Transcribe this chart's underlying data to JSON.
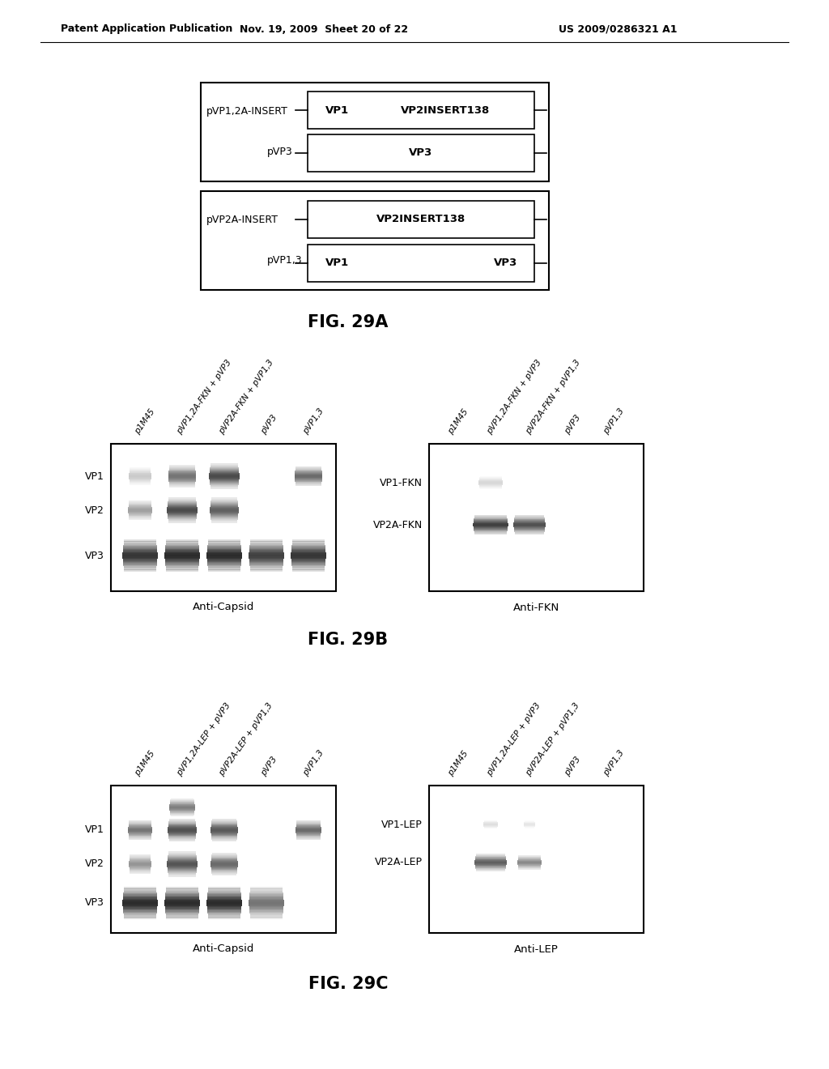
{
  "bg_color": "#ffffff",
  "header_left": "Patent Application Publication",
  "header_mid": "Nov. 19, 2009  Sheet 20 of 22",
  "header_right": "US 2009/0286321 A1",
  "fig29a_title": "FIG. 29A",
  "fig29b_title": "FIG. 29B",
  "fig29c_title": "FIG. 29C",
  "diagram_top_box1_label": "pVP1,2A-INSERT",
  "diagram_top_box1_inner_left": "VP1",
  "diagram_top_box1_inner_right": "VP2INSERT138",
  "diagram_top_box2_label": "pVP3",
  "diagram_top_box2_inner": "VP3",
  "diagram_bot_box1_label": "pVP2A-INSERT",
  "diagram_bot_box1_inner": "VP2INSERT138",
  "diagram_bot_box2_label": "pVP1,3",
  "diagram_bot_box2_inner_left": "VP1",
  "diagram_bot_box2_inner_right": "VP3",
  "lane_labels_fkn": [
    "p1M45",
    "pVP1,2A-FKN + pVP3",
    "pVP2A-FKN + pVP1,3",
    "pVP3",
    "pVP1,3"
  ],
  "lane_labels_lep": [
    "p1M45",
    "pVP1,2A-LEP + pVP3",
    "pVP2A-LEP + pVP1,3",
    "pVP3",
    "pVP1,3"
  ],
  "blot_left_labels_b": [
    "VP1",
    "VP2",
    "VP3"
  ],
  "blot_right_labels_b": [
    "VP1-FKN",
    "VP2A-FKN"
  ],
  "blot_left_labels_c": [
    "VP1",
    "VP2",
    "VP3"
  ],
  "blot_right_labels_c": [
    "VP1-LEP",
    "VP2A-LEP"
  ],
  "anti_capsid": "Anti-Capsid",
  "anti_fkn": "Anti-FKN",
  "anti_lep": "Anti-LEP"
}
